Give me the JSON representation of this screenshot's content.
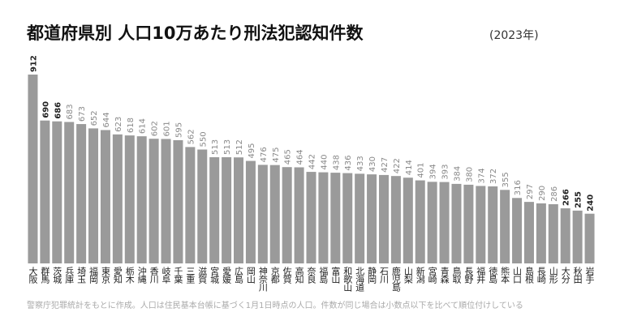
{
  "chart_data": {
    "type": "bar",
    "title": "都道府県別 人口10万あたり刑法犯認知件数",
    "subtitle": "(2023年)",
    "note": "警察庁犯罪統計をもとに作成。人口は住民基本台帳に基づく1月1日時点の人口。件数が同じ場合は小数点以下を比べて順位付けしている",
    "color": "#9a9a9a",
    "categories": [
      "大阪",
      "群馬",
      "茨城",
      "兵庫",
      "埼玉",
      "福岡",
      "東京",
      "愛知",
      "栃木",
      "沖縄",
      "香川",
      "岐阜",
      "千葉",
      "三重",
      "滋賀",
      "宮城",
      "愛媛",
      "広島",
      "岡山",
      "神奈川",
      "京都",
      "佐賀",
      "高知",
      "奈良",
      "福島",
      "富山",
      "和歌山",
      "北海道",
      "静岡",
      "石川",
      "鹿児島",
      "山梨",
      "新潟",
      "宮崎",
      "青森",
      "鳥取",
      "長野",
      "福井",
      "徳島",
      "熊本",
      "山口",
      "島根",
      "長崎",
      "山形",
      "大分",
      "秋田",
      "岩手"
    ],
    "values": [
      912,
      690,
      686,
      683,
      673,
      652,
      644,
      623,
      618,
      614,
      602,
      601,
      595,
      562,
      550,
      513,
      513,
      512,
      495,
      476,
      475,
      465,
      464,
      442,
      440,
      438,
      436,
      433,
      430,
      427,
      422,
      414,
      401,
      394,
      393,
      384,
      380,
      374,
      372,
      355,
      316,
      297,
      290,
      286,
      266,
      255,
      240
    ]
  }
}
